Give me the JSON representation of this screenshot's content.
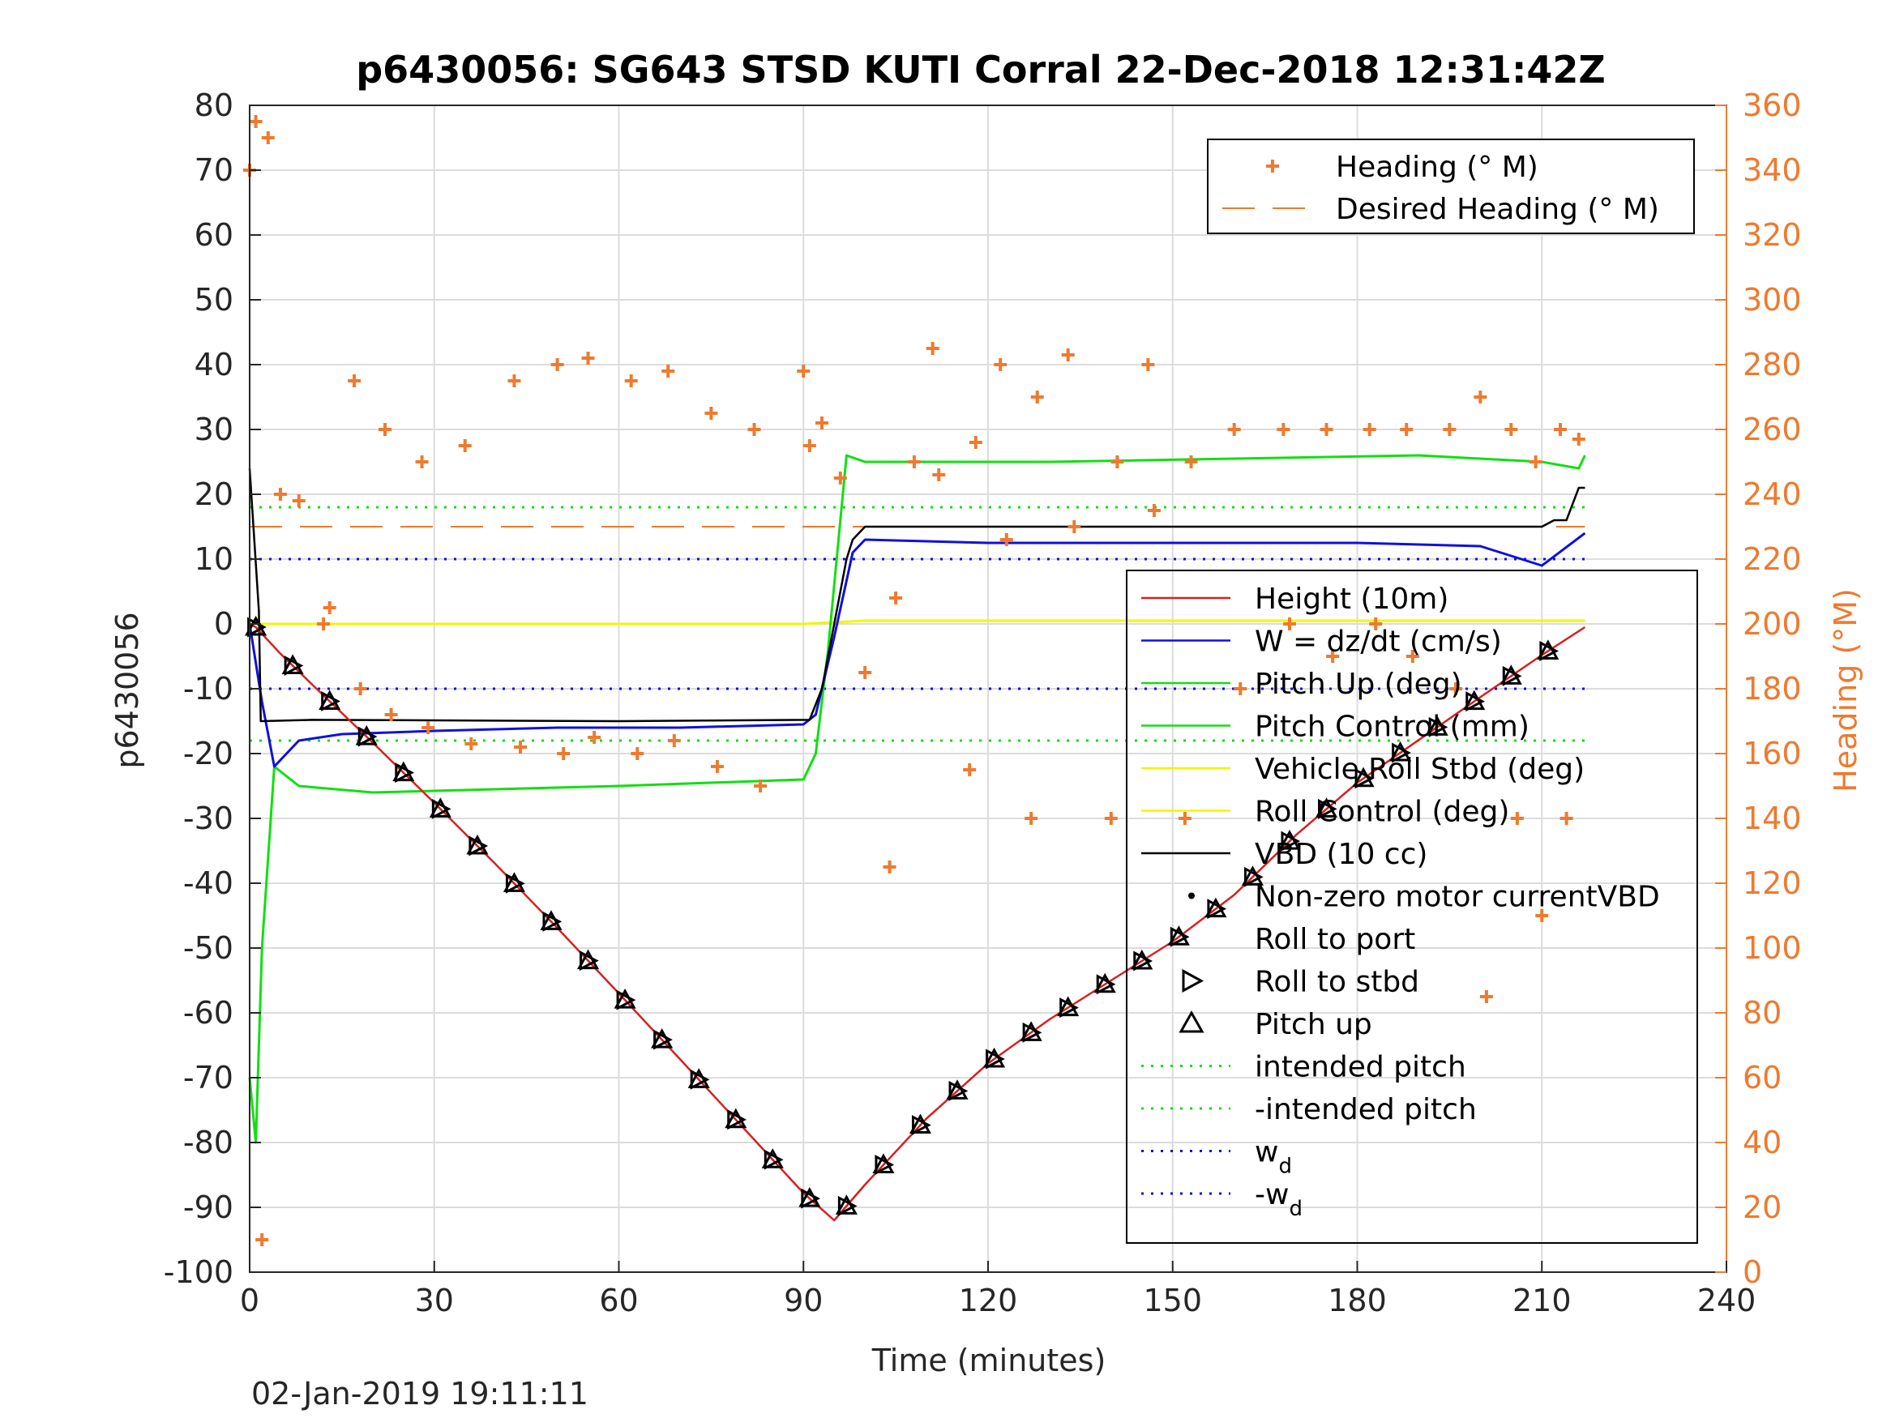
{
  "chart_data": {
    "type": "line",
    "title": "p6430056: SG643 STSD KUTI Corral 22-Dec-2018 12:31:42Z",
    "xlabel": "Time (minutes)",
    "ylabel": "p6430056",
    "ylabel_right": "Heading (°M)",
    "footer": "02-Jan-2019 19:11:11",
    "xlim": [
      0,
      240
    ],
    "ylim": [
      -100,
      80
    ],
    "ylim_right": [
      0,
      360
    ],
    "xticks": [
      "0",
      "30",
      "60",
      "90",
      "120",
      "150",
      "180",
      "210",
      "240"
    ],
    "yticks": [
      "80",
      "70",
      "60",
      "50",
      "40",
      "30",
      "20",
      "10",
      "0",
      "-10",
      "-20",
      "-30",
      "-40",
      "-50",
      "-60",
      "-70",
      "-80",
      "-90",
      "-100"
    ],
    "yticks_right": [
      "360",
      "340",
      "320",
      "300",
      "280",
      "260",
      "240",
      "220",
      "200",
      "180",
      "160",
      "140",
      "120",
      "100",
      "80",
      "60",
      "40",
      "20",
      "0"
    ],
    "grid": true,
    "colors": {
      "height": "#d62020",
      "w": "#1010dd",
      "pitch": "#10e010",
      "roll": "#f5f500",
      "vbd": "#000000",
      "heading": "#ee7a2f"
    },
    "legend_top": {
      "placement": "top-right",
      "entries": [
        "Heading (° M)",
        "Desired Heading (° M)"
      ]
    },
    "legend_main": {
      "placement": "right",
      "entries": [
        "Height (10m)",
        "W = dz/dt (cm/s)",
        "Pitch Up (deg)",
        "Pitch Control (mm)",
        "Vehicle Roll Stbd (deg)",
        "Roll Control (deg)",
        "VBD (10 cc)",
        "Non-zero motor currentVBD",
        "Roll to port",
        "Roll to stbd",
        "Pitch up",
        "intended pitch",
        "-intended pitch",
        "w",
        "-w"
      ],
      "subscript": "d"
    },
    "series": [
      {
        "name": "Height (10m)",
        "x": [
          0,
          1,
          5,
          10,
          20,
          30,
          40,
          50,
          60,
          70,
          80,
          90,
          95,
          100,
          110,
          120,
          130,
          140,
          150,
          160,
          170,
          180,
          190,
          200,
          210,
          217
        ],
        "y": [
          0,
          -0.5,
          -4.6,
          -9.2,
          -18.3,
          -27.6,
          -37.1,
          -46.9,
          -57.0,
          -67.2,
          -77.5,
          -87.8,
          -92.0,
          -86.5,
          -76.3,
          -67.8,
          -61.0,
          -55.0,
          -49.0,
          -41.8,
          -32.6,
          -24.5,
          -17.9,
          -11.3,
          -4.8,
          -0.5
        ]
      },
      {
        "name": "W = dz/dt (cm/s)",
        "x": [
          0,
          2,
          4,
          8,
          15,
          30,
          50,
          70,
          90,
          92,
          95,
          98,
          100,
          120,
          150,
          180,
          200,
          210,
          217
        ],
        "y": [
          0,
          -12,
          -22,
          -18,
          -17,
          -16.5,
          -16,
          -16,
          -15.5,
          -14,
          -2,
          11,
          13,
          12.5,
          12.5,
          12.5,
          12,
          9,
          14
        ]
      },
      {
        "name": "Pitch Up (deg)",
        "x": [
          0,
          1,
          2,
          4,
          8,
          20,
          40,
          60,
          90,
          92,
          94,
          97,
          100,
          130,
          160,
          190,
          210,
          216,
          217
        ],
        "y": [
          -70,
          -80,
          -50,
          -22,
          -25,
          -26,
          -25.5,
          -25,
          -24,
          -20,
          -4,
          26,
          25,
          25,
          25.5,
          26,
          25,
          24,
          26
        ]
      },
      {
        "name": "VBD (10 cc)",
        "x": [
          0,
          1.5,
          1.8,
          10,
          60,
          91,
          93,
          97,
          98,
          100,
          210,
          212,
          214,
          216,
          217
        ],
        "y": [
          24,
          2,
          -15,
          -14.8,
          -15,
          -14.8,
          -10,
          10,
          13,
          15,
          15,
          16,
          16,
          21,
          21
        ]
      },
      {
        "name": "Roll Control (deg)",
        "x": [
          0,
          10,
          30,
          60,
          90,
          100,
          130,
          160,
          190,
          217
        ],
        "y": [
          0,
          0,
          0,
          0,
          0,
          0.5,
          0.5,
          0.5,
          0.5,
          0.5
        ]
      },
      {
        "name": "intended pitch",
        "x": [
          0,
          217
        ],
        "y": [
          18,
          18
        ]
      },
      {
        "name": "-intended pitch",
        "x": [
          0,
          217
        ],
        "y": [
          -18,
          -18
        ]
      },
      {
        "name": "w",
        "x": [
          0,
          217
        ],
        "y": [
          10,
          10
        ]
      },
      {
        "name": "-w",
        "x": [
          0,
          217
        ],
        "y": [
          -10,
          -10
        ]
      },
      {
        "name": "Heading (° M)",
        "axis": "right",
        "x": [
          0,
          1,
          2,
          3,
          5,
          8,
          12,
          13,
          17,
          18,
          22,
          23,
          28,
          29,
          35,
          36,
          43,
          44,
          50,
          51,
          55,
          56,
          62,
          63,
          68,
          69,
          75,
          76,
          82,
          83,
          90,
          91,
          93,
          96,
          100,
          104,
          105,
          108,
          111,
          112,
          117,
          118,
          122,
          123,
          127,
          128,
          133,
          134,
          140,
          141,
          146,
          147,
          152,
          153,
          160,
          161,
          168,
          169,
          175,
          176,
          182,
          183,
          188,
          189,
          195,
          196,
          200,
          201,
          205,
          206,
          209,
          210,
          213,
          214,
          216
        ],
        "y": [
          340,
          355,
          10,
          350,
          240,
          238,
          200,
          205,
          275,
          180,
          260,
          172,
          250,
          168,
          255,
          163,
          275,
          162,
          280,
          160,
          282,
          165,
          275,
          160,
          278,
          164,
          265,
          156,
          260,
          150,
          278,
          255,
          262,
          245,
          185,
          125,
          208,
          250,
          285,
          246,
          155,
          256,
          280,
          226,
          140,
          270,
          283,
          230,
          140,
          250,
          280,
          235,
          140,
          250,
          260,
          180,
          260,
          200,
          260,
          190,
          260,
          200,
          260,
          190,
          260,
          180,
          270,
          85,
          260,
          140,
          250,
          110,
          260,
          140,
          257
        ]
      },
      {
        "name": "Desired Heading (° M)",
        "axis": "right",
        "x": [
          0,
          217
        ],
        "y": [
          230,
          230
        ]
      }
    ]
  }
}
